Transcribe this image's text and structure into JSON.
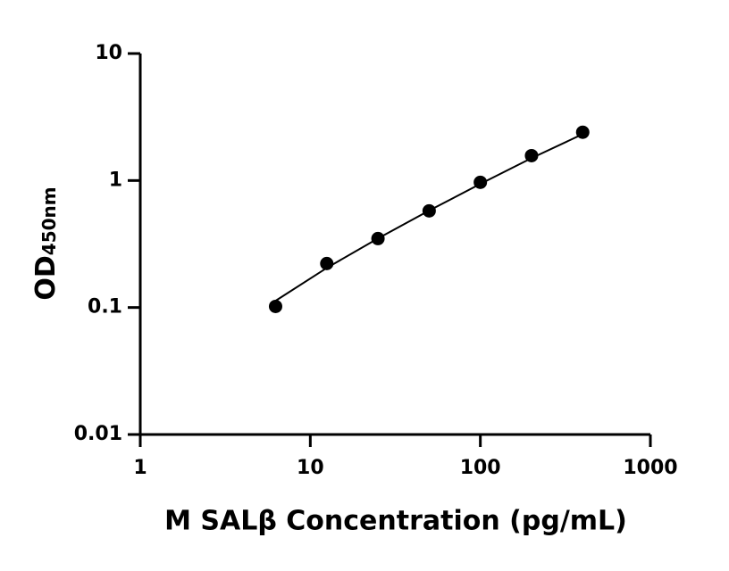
{
  "chart_data": {
    "type": "scatter",
    "x_label": "M SALβ Concentration (pg/mL)",
    "y_label": "OD",
    "y_label_subscript": "450nm",
    "x": [
      6.25,
      12.5,
      25,
      50,
      100,
      200,
      400
    ],
    "series": [
      {
        "color": "#000000",
        "values": [
          0.102,
          0.222,
          0.349,
          0.577,
          0.968,
          1.57,
          2.4
        ]
      },
      {
        "color": "#000000",
        "values": [
          0.113,
          0.205,
          0.35,
          0.58,
          0.94,
          1.5,
          2.32
        ],
        "style": "line"
      }
    ],
    "xlim": [
      1,
      1000
    ],
    "xticks": [
      1,
      10,
      100,
      1000
    ],
    "xscale": "log",
    "ylim": [
      0.01,
      10
    ],
    "yticks": [
      0.01,
      0.1,
      1,
      10
    ],
    "yscale": "log",
    "grid": false
  }
}
